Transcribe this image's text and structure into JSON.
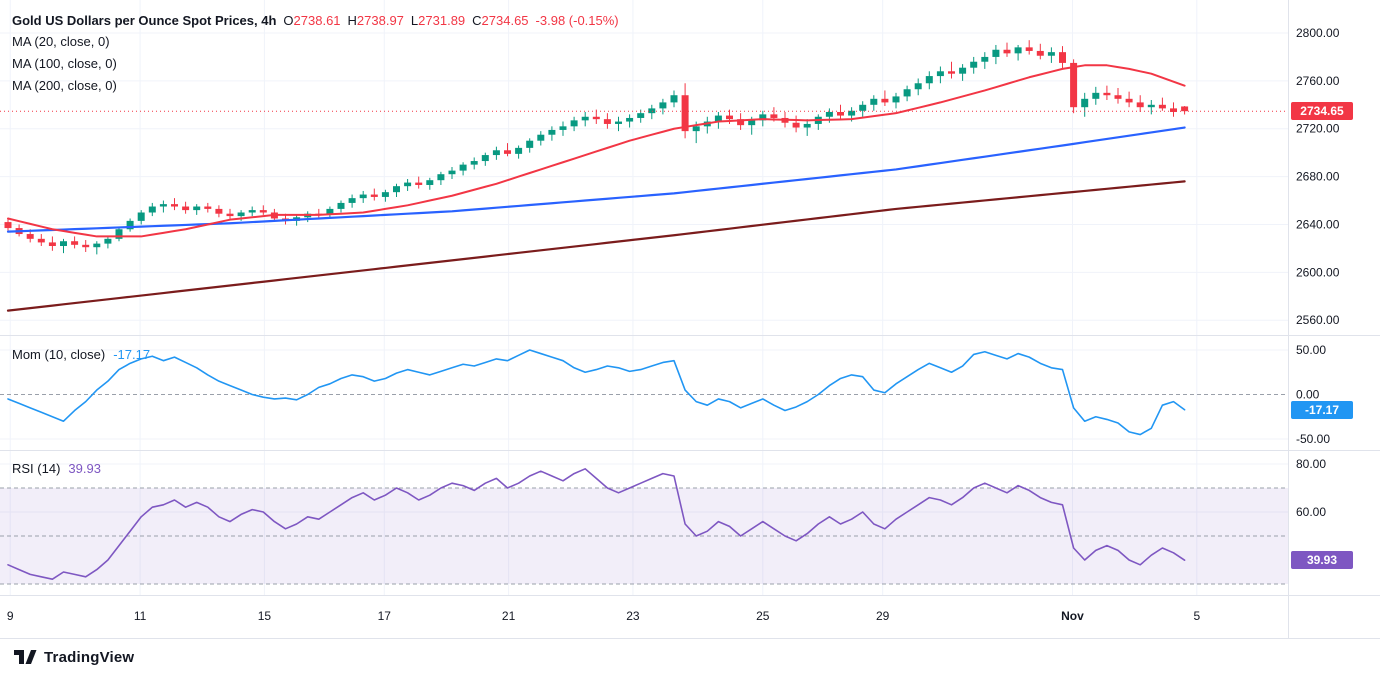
{
  "header": {
    "title": "Gold US Dollars per Ounce Spot Prices, 4h",
    "o_label": "O",
    "open": "2738.61",
    "h_label": "H",
    "high": "2738.97",
    "l_label": "L",
    "low": "2731.89",
    "c_label": "C",
    "close": "2734.65",
    "change": "-3.98 (-0.15%)",
    "ma_labels": [
      "MA (20, close, 0)",
      "MA (100, close, 0)",
      "MA (200, close, 0)"
    ]
  },
  "momentum_legend": {
    "label": "Mom (10, close)",
    "value": "-17.17"
  },
  "rsi_legend": {
    "label": "RSI (14)",
    "value": "39.93"
  },
  "badges": {
    "price": "2734.65",
    "momentum": "-17.17",
    "rsi": "39.93"
  },
  "axes": {
    "price_ticks": [
      {
        "v": 2800,
        "label": "2800.00"
      },
      {
        "v": 2760,
        "label": "2760.00"
      },
      {
        "v": 2720,
        "label": "2720.00"
      },
      {
        "v": 2680,
        "label": "2680.00"
      },
      {
        "v": 2640,
        "label": "2640.00"
      },
      {
        "v": 2600,
        "label": "2600.00"
      },
      {
        "v": 2560,
        "label": "2560.00"
      }
    ],
    "momentum_ticks": [
      {
        "v": 50,
        "label": "50.00"
      },
      {
        "v": 0,
        "label": "0.00"
      },
      {
        "v": -50,
        "label": "-50.00"
      }
    ],
    "rsi_ticks": [
      {
        "v": 80,
        "label": "80.00"
      },
      {
        "v": 60,
        "label": "60.00"
      }
    ],
    "time_ticks": [
      {
        "i": 0.2,
        "label": "9"
      },
      {
        "i": 11.9,
        "label": "11"
      },
      {
        "i": 23.1,
        "label": "15"
      },
      {
        "i": 33.9,
        "label": "17"
      },
      {
        "i": 45.1,
        "label": "21"
      },
      {
        "i": 56.3,
        "label": "23"
      },
      {
        "i": 68.0,
        "label": "25"
      },
      {
        "i": 78.8,
        "label": "29"
      },
      {
        "i": 95.9,
        "label": "Nov"
      },
      {
        "i": 107.1,
        "label": "5"
      }
    ]
  },
  "colors": {
    "up": "#089981",
    "down": "#f23645",
    "ma20": "#f23645",
    "ma100": "#2962ff",
    "ma200": "#7b1c1c",
    "mom": "#2196f3",
    "rsi": "#7e57c2",
    "rsi_band": "rgba(126,87,194,0.10)",
    "grid": "#f0f3fa",
    "dash": "#9aa0aa",
    "separator": "#e0e3eb",
    "text": "#131722"
  },
  "footer": {
    "brand": "TradingView"
  },
  "chart_data": {
    "type": "candlestick",
    "title": "Gold US Dollars per Ounce Spot Prices",
    "interval": "4h",
    "last": {
      "open": 2738.61,
      "high": 2738.97,
      "low": 2731.89,
      "close": 2734.65,
      "change": -3.98,
      "change_pct": -0.15
    },
    "price_axis_visible_range": [
      2548,
      2828
    ],
    "candles_ohlc": [
      [
        2642,
        2645,
        2635,
        2637
      ],
      [
        2637,
        2640,
        2630,
        2632
      ],
      [
        2632,
        2636,
        2625,
        2628
      ],
      [
        2628,
        2632,
        2622,
        2625
      ],
      [
        2625,
        2630,
        2618,
        2622
      ],
      [
        2622,
        2628,
        2616,
        2626
      ],
      [
        2626,
        2630,
        2620,
        2623
      ],
      [
        2623,
        2627,
        2617,
        2621
      ],
      [
        2621,
        2626,
        2615,
        2624
      ],
      [
        2624,
        2630,
        2620,
        2628
      ],
      [
        2628,
        2638,
        2626,
        2636
      ],
      [
        2636,
        2645,
        2634,
        2643
      ],
      [
        2643,
        2652,
        2640,
        2650
      ],
      [
        2650,
        2658,
        2647,
        2655
      ],
      [
        2655,
        2660,
        2650,
        2657
      ],
      [
        2657,
        2662,
        2652,
        2655
      ],
      [
        2655,
        2659,
        2649,
        2652
      ],
      [
        2652,
        2657,
        2648,
        2655
      ],
      [
        2655,
        2658,
        2650,
        2653
      ],
      [
        2653,
        2656,
        2646,
        2649
      ],
      [
        2649,
        2653,
        2644,
        2647
      ],
      [
        2647,
        2652,
        2643,
        2650
      ],
      [
        2650,
        2655,
        2647,
        2652
      ],
      [
        2652,
        2656,
        2648,
        2650
      ],
      [
        2650,
        2653,
        2643,
        2645
      ],
      [
        2645,
        2649,
        2640,
        2643
      ],
      [
        2643,
        2648,
        2639,
        2646
      ],
      [
        2646,
        2651,
        2642,
        2649
      ],
      [
        2649,
        2653,
        2645,
        2648
      ],
      [
        2648,
        2655,
        2645,
        2653
      ],
      [
        2653,
        2660,
        2650,
        2658
      ],
      [
        2658,
        2665,
        2654,
        2662
      ],
      [
        2662,
        2668,
        2658,
        2665
      ],
      [
        2665,
        2670,
        2660,
        2663
      ],
      [
        2663,
        2669,
        2659,
        2667
      ],
      [
        2667,
        2674,
        2663,
        2672
      ],
      [
        2672,
        2678,
        2668,
        2675
      ],
      [
        2675,
        2680,
        2670,
        2673
      ],
      [
        2673,
        2679,
        2669,
        2677
      ],
      [
        2677,
        2684,
        2673,
        2682
      ],
      [
        2682,
        2688,
        2678,
        2685
      ],
      [
        2685,
        2692,
        2681,
        2690
      ],
      [
        2690,
        2696,
        2686,
        2693
      ],
      [
        2693,
        2700,
        2689,
        2698
      ],
      [
        2698,
        2705,
        2694,
        2702
      ],
      [
        2702,
        2708,
        2697,
        2699
      ],
      [
        2699,
        2706,
        2695,
        2704
      ],
      [
        2704,
        2712,
        2700,
        2710
      ],
      [
        2710,
        2718,
        2706,
        2715
      ],
      [
        2715,
        2722,
        2710,
        2719
      ],
      [
        2719,
        2726,
        2714,
        2722
      ],
      [
        2722,
        2730,
        2718,
        2727
      ],
      [
        2727,
        2734,
        2722,
        2730
      ],
      [
        2730,
        2736,
        2724,
        2728
      ],
      [
        2728,
        2733,
        2720,
        2724
      ],
      [
        2724,
        2730,
        2718,
        2726
      ],
      [
        2726,
        2732,
        2721,
        2729
      ],
      [
        2729,
        2736,
        2725,
        2733
      ],
      [
        2733,
        2740,
        2728,
        2737
      ],
      [
        2737,
        2745,
        2732,
        2742
      ],
      [
        2742,
        2752,
        2738,
        2748
      ],
      [
        2748,
        2758,
        2712,
        2718
      ],
      [
        2718,
        2726,
        2708,
        2722
      ],
      [
        2722,
        2730,
        2716,
        2726
      ],
      [
        2726,
        2734,
        2720,
        2731
      ],
      [
        2731,
        2736,
        2724,
        2728
      ],
      [
        2728,
        2733,
        2719,
        2723
      ],
      [
        2723,
        2730,
        2715,
        2727
      ],
      [
        2727,
        2735,
        2722,
        2732
      ],
      [
        2732,
        2738,
        2726,
        2729
      ],
      [
        2729,
        2734,
        2721,
        2725
      ],
      [
        2725,
        2731,
        2717,
        2721
      ],
      [
        2721,
        2728,
        2714,
        2724
      ],
      [
        2724,
        2732,
        2719,
        2730
      ],
      [
        2730,
        2737,
        2725,
        2734
      ],
      [
        2734,
        2740,
        2728,
        2731
      ],
      [
        2731,
        2738,
        2726,
        2735
      ],
      [
        2735,
        2743,
        2730,
        2740
      ],
      [
        2740,
        2748,
        2735,
        2745
      ],
      [
        2745,
        2752,
        2739,
        2742
      ],
      [
        2742,
        2750,
        2737,
        2747
      ],
      [
        2747,
        2756,
        2743,
        2753
      ],
      [
        2753,
        2762,
        2748,
        2758
      ],
      [
        2758,
        2768,
        2753,
        2764
      ],
      [
        2764,
        2772,
        2758,
        2768
      ],
      [
        2768,
        2776,
        2762,
        2766
      ],
      [
        2766,
        2774,
        2760,
        2771
      ],
      [
        2771,
        2780,
        2766,
        2776
      ],
      [
        2776,
        2784,
        2770,
        2780
      ],
      [
        2780,
        2790,
        2774,
        2786
      ],
      [
        2786,
        2792,
        2780,
        2783
      ],
      [
        2783,
        2790,
        2777,
        2788
      ],
      [
        2788,
        2794,
        2782,
        2785
      ],
      [
        2785,
        2791,
        2778,
        2781
      ],
      [
        2781,
        2788,
        2775,
        2784
      ],
      [
        2784,
        2789,
        2770,
        2775
      ],
      [
        2775,
        2778,
        2733,
        2738
      ],
      [
        2738,
        2750,
        2730,
        2745
      ],
      [
        2745,
        2755,
        2740,
        2750
      ],
      [
        2750,
        2756,
        2744,
        2748
      ],
      [
        2748,
        2754,
        2741,
        2745
      ],
      [
        2745,
        2751,
        2738,
        2742
      ],
      [
        2742,
        2748,
        2734,
        2738
      ],
      [
        2738,
        2744,
        2732,
        2740
      ],
      [
        2740,
        2746,
        2735,
        2737
      ],
      [
        2737,
        2742,
        2730,
        2734
      ],
      [
        2738.61,
        2738.97,
        2731.89,
        2734.65
      ]
    ],
    "ma20_anchors": [
      [
        0,
        2645
      ],
      [
        4,
        2636
      ],
      [
        8,
        2630
      ],
      [
        12,
        2630
      ],
      [
        16,
        2636
      ],
      [
        20,
        2644
      ],
      [
        24,
        2648
      ],
      [
        28,
        2648
      ],
      [
        32,
        2650
      ],
      [
        36,
        2656
      ],
      [
        40,
        2664
      ],
      [
        44,
        2674
      ],
      [
        48,
        2686
      ],
      [
        52,
        2698
      ],
      [
        56,
        2710
      ],
      [
        60,
        2720
      ],
      [
        64,
        2726
      ],
      [
        68,
        2728
      ],
      [
        72,
        2727
      ],
      [
        76,
        2728
      ],
      [
        80,
        2733
      ],
      [
        84,
        2742
      ],
      [
        88,
        2752
      ],
      [
        92,
        2763
      ],
      [
        95,
        2770
      ],
      [
        97,
        2773
      ],
      [
        99,
        2773
      ],
      [
        101,
        2770
      ],
      [
        103,
        2766
      ],
      [
        106,
        2756
      ]
    ],
    "ma100_anchors": [
      [
        0,
        2634
      ],
      [
        20,
        2641
      ],
      [
        40,
        2651
      ],
      [
        60,
        2666
      ],
      [
        80,
        2686
      ],
      [
        95,
        2706
      ],
      [
        106,
        2721
      ]
    ],
    "ma200_anchors": [
      [
        0,
        2568
      ],
      [
        20,
        2589
      ],
      [
        40,
        2610
      ],
      [
        60,
        2631
      ],
      [
        80,
        2653
      ],
      [
        106,
        2676
      ]
    ],
    "momentum": {
      "name": "Mom (10, close)",
      "last": -17.17,
      "zero_line": 0,
      "values": [
        -5,
        -10,
        -15,
        -20,
        -25,
        -30,
        -18,
        -8,
        5,
        15,
        28,
        35,
        40,
        43,
        38,
        42,
        36,
        30,
        22,
        15,
        10,
        5,
        0,
        -3,
        -5,
        -4,
        -6,
        0,
        8,
        12,
        18,
        22,
        20,
        15,
        18,
        24,
        28,
        25,
        22,
        26,
        30,
        34,
        32,
        36,
        40,
        38,
        44,
        50,
        46,
        42,
        38,
        30,
        25,
        28,
        32,
        30,
        26,
        28,
        32,
        36,
        38,
        5,
        -8,
        -12,
        -5,
        -8,
        -15,
        -10,
        -5,
        -12,
        -18,
        -14,
        -8,
        0,
        10,
        18,
        22,
        20,
        5,
        2,
        12,
        20,
        28,
        35,
        30,
        25,
        32,
        45,
        48,
        44,
        40,
        46,
        42,
        35,
        30,
        28,
        -15,
        -30,
        -25,
        -28,
        -32,
        -42,
        -45,
        -38,
        -12,
        -8,
        -17.17
      ]
    },
    "rsi": {
      "name": "RSI (14)",
      "last": 39.93,
      "band": [
        30,
        70
      ],
      "mid_line": 50,
      "values": [
        38,
        36,
        34,
        33,
        32,
        35,
        34,
        33,
        36,
        40,
        46,
        52,
        58,
        62,
        63,
        65,
        62,
        64,
        62,
        58,
        56,
        59,
        61,
        60,
        56,
        53,
        55,
        58,
        57,
        60,
        63,
        66,
        68,
        65,
        67,
        70,
        68,
        65,
        67,
        70,
        72,
        71,
        69,
        72,
        74,
        70,
        72,
        75,
        77,
        75,
        73,
        76,
        78,
        74,
        70,
        68,
        70,
        72,
        74,
        76,
        75,
        55,
        50,
        52,
        56,
        54,
        50,
        53,
        56,
        53,
        50,
        48,
        51,
        55,
        58,
        55,
        57,
        60,
        55,
        53,
        57,
        60,
        63,
        66,
        65,
        63,
        66,
        70,
        72,
        70,
        68,
        71,
        69,
        66,
        64,
        63,
        45,
        40,
        44,
        46,
        44,
        40,
        38,
        42,
        45,
        43,
        39.93
      ]
    }
  }
}
